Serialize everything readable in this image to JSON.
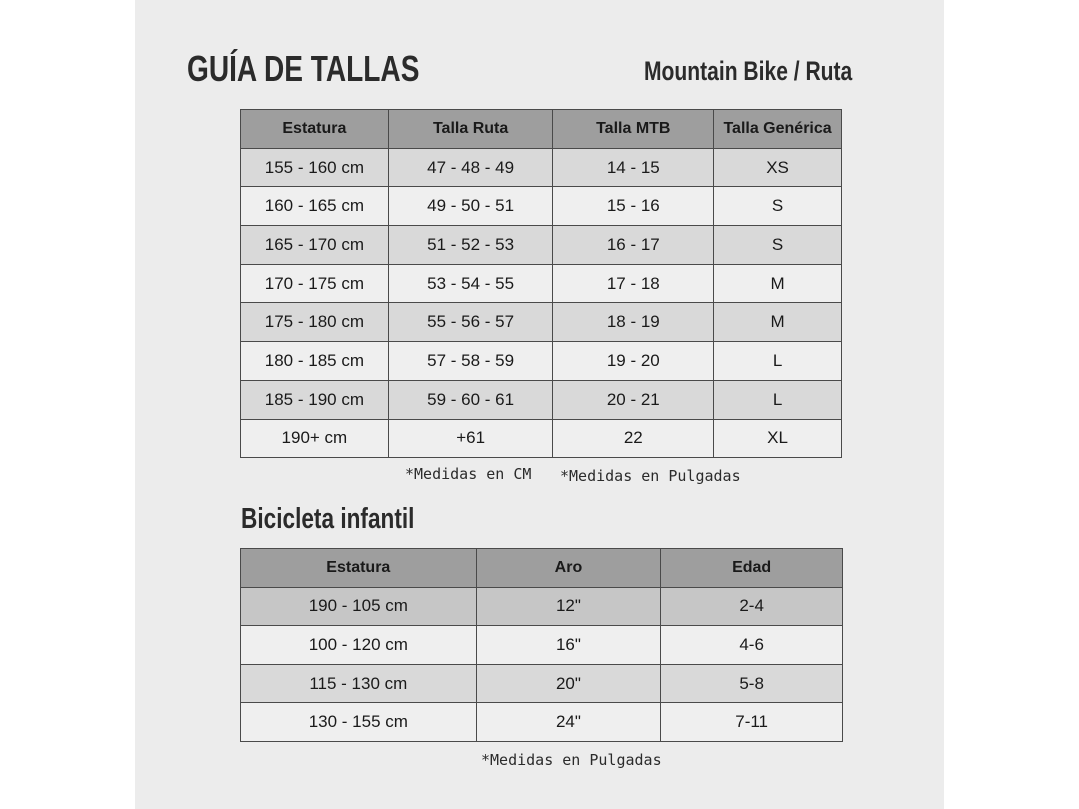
{
  "header": {
    "title": "GUÍA DE TALLAS",
    "subtitle": "Mountain Bike / Ruta"
  },
  "adult_table": {
    "columns": [
      "Estatura",
      "Talla Ruta",
      "Talla MTB",
      "Talla Genérica"
    ],
    "rows": [
      [
        "155 - 160 cm",
        "47 - 48 - 49",
        "14 - 15",
        "XS"
      ],
      [
        "160 - 165 cm",
        "49 - 50 - 51",
        "15 - 16",
        "S"
      ],
      [
        "165 - 170 cm",
        "51 - 52 - 53",
        "16 - 17",
        "S"
      ],
      [
        "170 - 175 cm",
        "53 - 54 - 55",
        "17 - 18",
        "M"
      ],
      [
        "175 - 180 cm",
        "55 - 56 - 57",
        "18 - 19",
        "M"
      ],
      [
        "180 - 185 cm",
        "57 - 58 - 59",
        "19 - 20",
        "L"
      ],
      [
        "185 - 190 cm",
        "59 - 60 - 61",
        "20 - 21",
        "L"
      ],
      [
        "190+ cm",
        "+61",
        "22",
        "XL"
      ]
    ],
    "note_cm": "*Medidas en CM",
    "note_in": "*Medidas en Pulgadas"
  },
  "kids": {
    "title": "Bicicleta infantil",
    "columns": [
      "Estatura",
      "Aro",
      "Edad"
    ],
    "rows": [
      [
        "190 - 105 cm",
        "12\"",
        "2-4"
      ],
      [
        "100 - 120 cm",
        "16\"",
        "4-6"
      ],
      [
        "115 - 130 cm",
        "20\"",
        "5-8"
      ],
      [
        "130 - 155 cm",
        "24\"",
        "7-11"
      ]
    ],
    "note": "*Medidas en Pulgadas"
  }
}
